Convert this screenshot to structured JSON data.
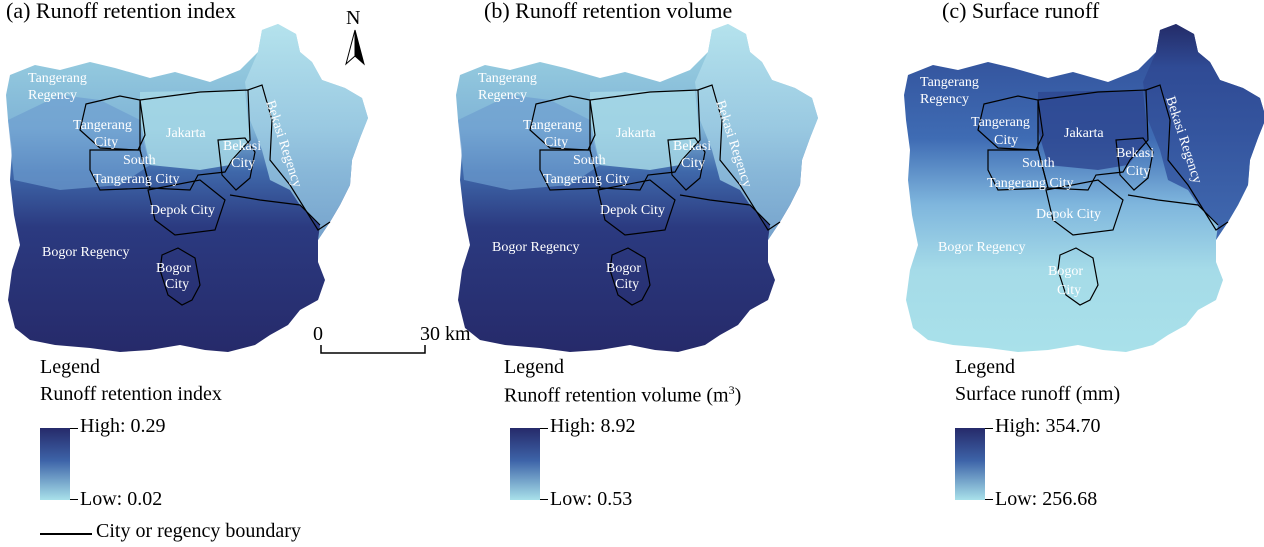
{
  "panels": [
    {
      "title": "(a) Runoff retention index",
      "legend_heading": "Legend",
      "legend_title": "Runoff retention index",
      "legend_unit_sup": "",
      "legend_unit_close": "",
      "high_label": "High: 0.29",
      "low_label": "Low: 0.02",
      "ramp_top": "#262a6a",
      "ramp_bottom": "#a9e1ea"
    },
    {
      "title": "(b) Runoff retention volume",
      "legend_heading": "Legend",
      "legend_title": "Runoff retention volume (m",
      "legend_unit_sup": "3",
      "legend_unit_close": ")",
      "high_label": "High: 8.92",
      "low_label": "Low: 0.53",
      "ramp_top": "#262a6a",
      "ramp_bottom": "#a9e1ea"
    },
    {
      "title": "(c) Surface runoff",
      "legend_heading": "Legend",
      "legend_title": "Surface runoff (mm)",
      "legend_unit_sup": "",
      "legend_unit_close": "",
      "high_label": "High: 354.70",
      "low_label": "Low: 256.68",
      "ramp_top": "#262a6a",
      "ramp_bottom": "#a9e1ea"
    }
  ],
  "place_names": {
    "tangerang_regency_1": "Tangerang",
    "tangerang_regency_2": "Regency",
    "tangerang_city_1": "Tangerang",
    "tangerang_city_2": "City",
    "jakarta": "Jakarta",
    "bekasi_city_1": "Bekasi",
    "bekasi_city_2": "City",
    "bekasi_regency": "Bekasi Regency",
    "south_1": "South",
    "south_2": "Tangerang City",
    "depok_city": "Depok City",
    "bogor_regency": "Bogor Regency",
    "bogor_city_1": "Bogor",
    "bogor_city_2": "City"
  },
  "compass_label": "N",
  "scale": {
    "start": "0",
    "end": "30 km"
  },
  "boundary_legend": "City or regency boundary",
  "map_colors": {
    "dark": "#262a6a",
    "mid": "#3d63a8",
    "light": "#a9e1ea",
    "lighter": "#c4ecf1"
  }
}
